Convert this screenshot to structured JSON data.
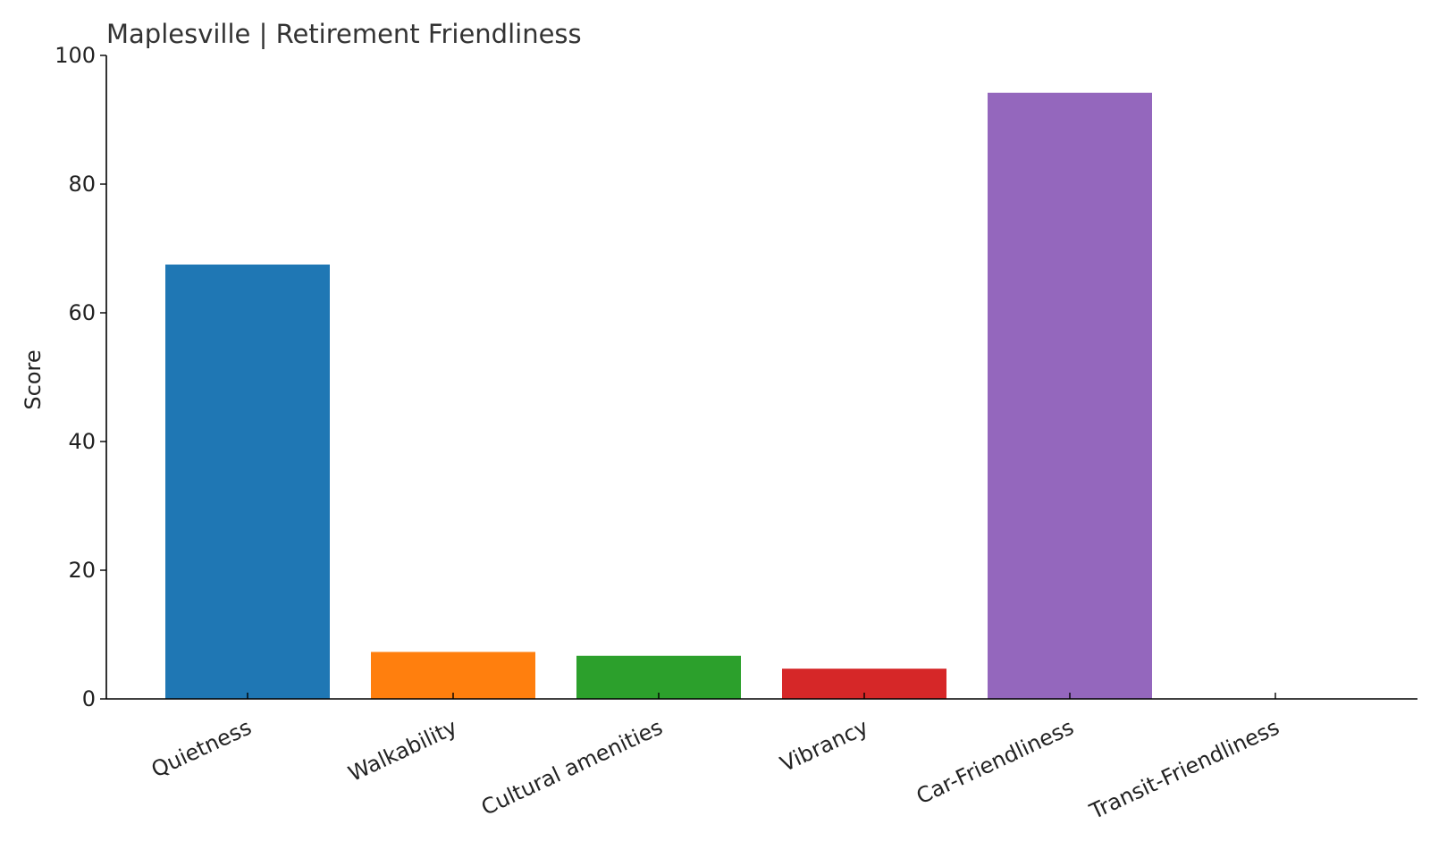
{
  "chart_data": {
    "type": "bar",
    "title": "Maplesville | Retirement Friendliness",
    "xlabel": "",
    "ylabel": "Score",
    "ylim": [
      0,
      100
    ],
    "yticks": [
      0,
      20,
      40,
      60,
      80,
      100
    ],
    "grid": false,
    "categories": [
      "Quietness",
      "Walkability",
      "Cultural amenities",
      "Vibrancy",
      "Car-Friendliness",
      "Transit-Friendliness"
    ],
    "values": [
      67.5,
      7.3,
      6.7,
      4.7,
      94.2,
      0
    ],
    "colors": [
      "#1f77b4",
      "#ff7f0e",
      "#2ca02c",
      "#d62728",
      "#9467bd",
      "#8c564b"
    ]
  }
}
